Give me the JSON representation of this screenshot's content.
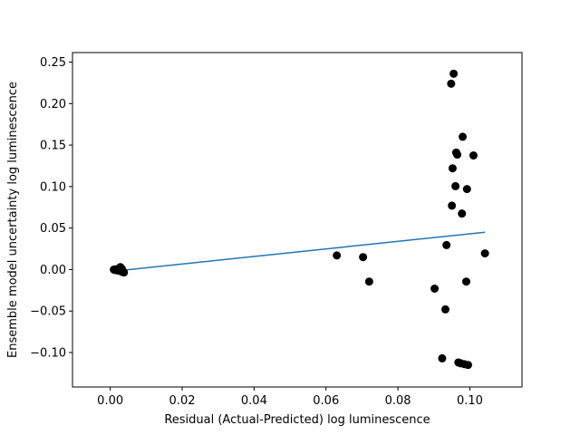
{
  "chart_data": {
    "type": "scatter",
    "title": "",
    "xlabel": "Residual (Actual-Predicted) log luminescence",
    "ylabel": "Ensemble model uncertainty log luminescence",
    "xlim": [
      -0.0105,
      0.1145
    ],
    "ylim": [
      -0.1415,
      0.2615
    ],
    "xticks": [
      0.0,
      0.02,
      0.04,
      0.06,
      0.08,
      0.1
    ],
    "xtick_labels": [
      "0.00",
      "0.02",
      "0.04",
      "0.06",
      "0.08",
      "0.10"
    ],
    "yticks": [
      -0.1,
      -0.05,
      0.0,
      0.05,
      0.1,
      0.15,
      0.2,
      0.25
    ],
    "ytick_labels": [
      "−0.10",
      "−0.05",
      "0.00",
      "0.05",
      "0.10",
      "0.15",
      "0.20",
      "0.25"
    ],
    "grid": false,
    "point_color": "#000000",
    "line_color": "#1f77b4",
    "points": [
      [
        0.001,
        0.0
      ],
      [
        0.0013,
        -0.0005
      ],
      [
        0.0016,
        0.0004
      ],
      [
        0.0018,
        -0.0008
      ],
      [
        0.002,
        0.0002
      ],
      [
        0.0022,
        -0.0012
      ],
      [
        0.0024,
        0.0007
      ],
      [
        0.0026,
        -0.0015
      ],
      [
        0.0028,
        0.003
      ],
      [
        0.003,
        -0.002
      ],
      [
        0.0032,
        0.001
      ],
      [
        0.0034,
        -0.003
      ],
      [
        0.0036,
        -0.0025
      ],
      [
        0.0038,
        -0.0035
      ],
      [
        0.063,
        0.017
      ],
      [
        0.0703,
        0.015
      ],
      [
        0.072,
        -0.0145
      ],
      [
        0.0902,
        -0.023
      ],
      [
        0.0923,
        -0.107
      ],
      [
        0.0932,
        -0.048
      ],
      [
        0.0935,
        0.0295
      ],
      [
        0.0948,
        0.224
      ],
      [
        0.095,
        0.077
      ],
      [
        0.0952,
        0.122
      ],
      [
        0.0955,
        0.236
      ],
      [
        0.096,
        0.1005
      ],
      [
        0.0962,
        0.141
      ],
      [
        0.0965,
        0.1385
      ],
      [
        0.0968,
        -0.112
      ],
      [
        0.0975,
        -0.113
      ],
      [
        0.0978,
        0.0675
      ],
      [
        0.098,
        0.16
      ],
      [
        0.0985,
        -0.114
      ],
      [
        0.099,
        -0.0145
      ],
      [
        0.0992,
        0.097
      ],
      [
        0.0995,
        -0.115
      ],
      [
        0.101,
        0.1375
      ],
      [
        0.1042,
        0.0195
      ]
    ],
    "fit_line": [
      [
        0.001,
        -0.002
      ],
      [
        0.1042,
        0.045
      ]
    ]
  }
}
